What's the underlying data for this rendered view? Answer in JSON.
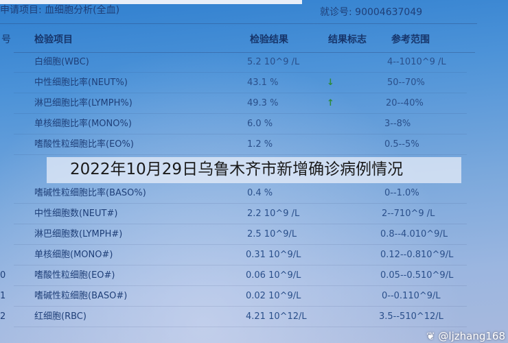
{
  "header": {
    "request_label": "申请项目: 血细胞分析(全血)",
    "visit_label": "就诊号: 90004637049"
  },
  "columns": {
    "no": "号",
    "item": "检验项目",
    "result": "检验结果",
    "flag": "结果标志",
    "range": "参考范围"
  },
  "rows": [
    {
      "no": "",
      "item": "白细胞(WBC)",
      "result": "5.2 10^9 /L",
      "flag": "",
      "range": "4--1010^9 /L"
    },
    {
      "no": "",
      "item": "中性细胞比率(NEUT%)",
      "result": "43.1 %",
      "flag": "↓",
      "range": "50--70%"
    },
    {
      "no": "",
      "item": "淋巴细胞比率(LYMPH%)",
      "result": "49.3 %",
      "flag": "↑",
      "range": "20--40%"
    },
    {
      "no": "",
      "item": "单核细胞比率(MONO%)",
      "result": "6.0 %",
      "flag": "",
      "range": "3--8%"
    },
    {
      "no": "",
      "item": "嗜酸性粒细胞比率(EO%)",
      "result": "1.2 %",
      "flag": "",
      "range": "0.5--5%"
    },
    {
      "no": "",
      "item": "嗜碱性粒细胞比率(BASO%)",
      "result": "0.4 %",
      "flag": "",
      "range": "0--1.0%"
    },
    {
      "no": "",
      "item": "中性细胞数(NEUT#)",
      "result": "2.2 10^9 /L",
      "flag": "",
      "range": "2--710^9 /L"
    },
    {
      "no": "",
      "item": "淋巴细胞数(LYMPH#)",
      "result": "2.5 10^9/L",
      "flag": "",
      "range": "0.8--4.010^9/L"
    },
    {
      "no": "",
      "item": "单核细胞(MONO#)",
      "result": "0.31 10^9/L",
      "flag": "",
      "range": "0.12--0.810^9/L"
    },
    {
      "no": "0",
      "item": "嗜酸性粒细胞(EO#)",
      "result": "0.06 10^9/L",
      "flag": "",
      "range": "0.05--0.510^9/L"
    },
    {
      "no": "1",
      "item": "嗜碱性粒细胞(BASO#)",
      "result": "0.02 10^9/L",
      "flag": "",
      "range": "0--0.110^9/L"
    },
    {
      "no": "2",
      "item": "红细胞(RBC)",
      "result": "4.21 10^12/L",
      "flag": "",
      "range": "3.5--510^12/L"
    }
  ],
  "caption": "2022年10月29日乌鲁木齐市新增确诊病例情况",
  "watermark": "@ljzhang168",
  "colors": {
    "flag_color": "#2e8b3a",
    "screen_blue": "#4d93d8"
  }
}
